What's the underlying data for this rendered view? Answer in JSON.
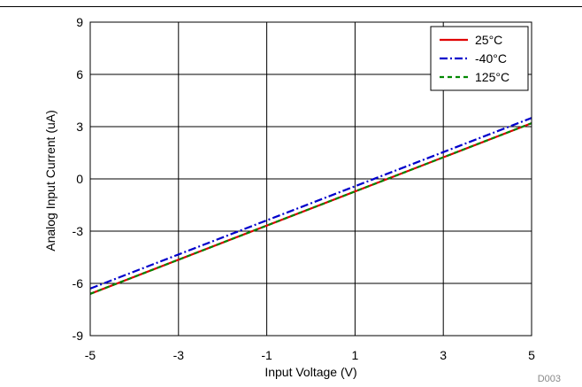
{
  "chart_data": {
    "type": "line",
    "xlabel": "Input Voltage (V)",
    "ylabel": "Analog Input Current (uA)",
    "xlim": [
      -5,
      5
    ],
    "ylim": [
      -9,
      9
    ],
    "xticks": [
      -5,
      -3,
      -1,
      1,
      3,
      5
    ],
    "yticks": [
      -9,
      -6,
      -3,
      0,
      3,
      6,
      9
    ],
    "xtick_labels": [
      "-5",
      "-3",
      "-1",
      "1",
      "3",
      "5"
    ],
    "ytick_labels": [
      "-9",
      "-6",
      "-3",
      "0",
      "3",
      "6",
      "9"
    ],
    "grid": true,
    "legend_position": "top-right",
    "series": [
      {
        "name": "25°C",
        "color": "#e00000",
        "style": "solid",
        "x": [
          -5,
          5
        ],
        "y": [
          -6.6,
          3.2
        ]
      },
      {
        "name": "-40°C",
        "color": "#0000cc",
        "style": "dashdot",
        "x": [
          -5,
          5
        ],
        "y": [
          -6.3,
          3.5
        ]
      },
      {
        "name": "125°C",
        "color": "#008800",
        "style": "dashed",
        "x": [
          -5,
          5
        ],
        "y": [
          -6.6,
          3.2
        ]
      }
    ]
  },
  "figure_id": "D003"
}
